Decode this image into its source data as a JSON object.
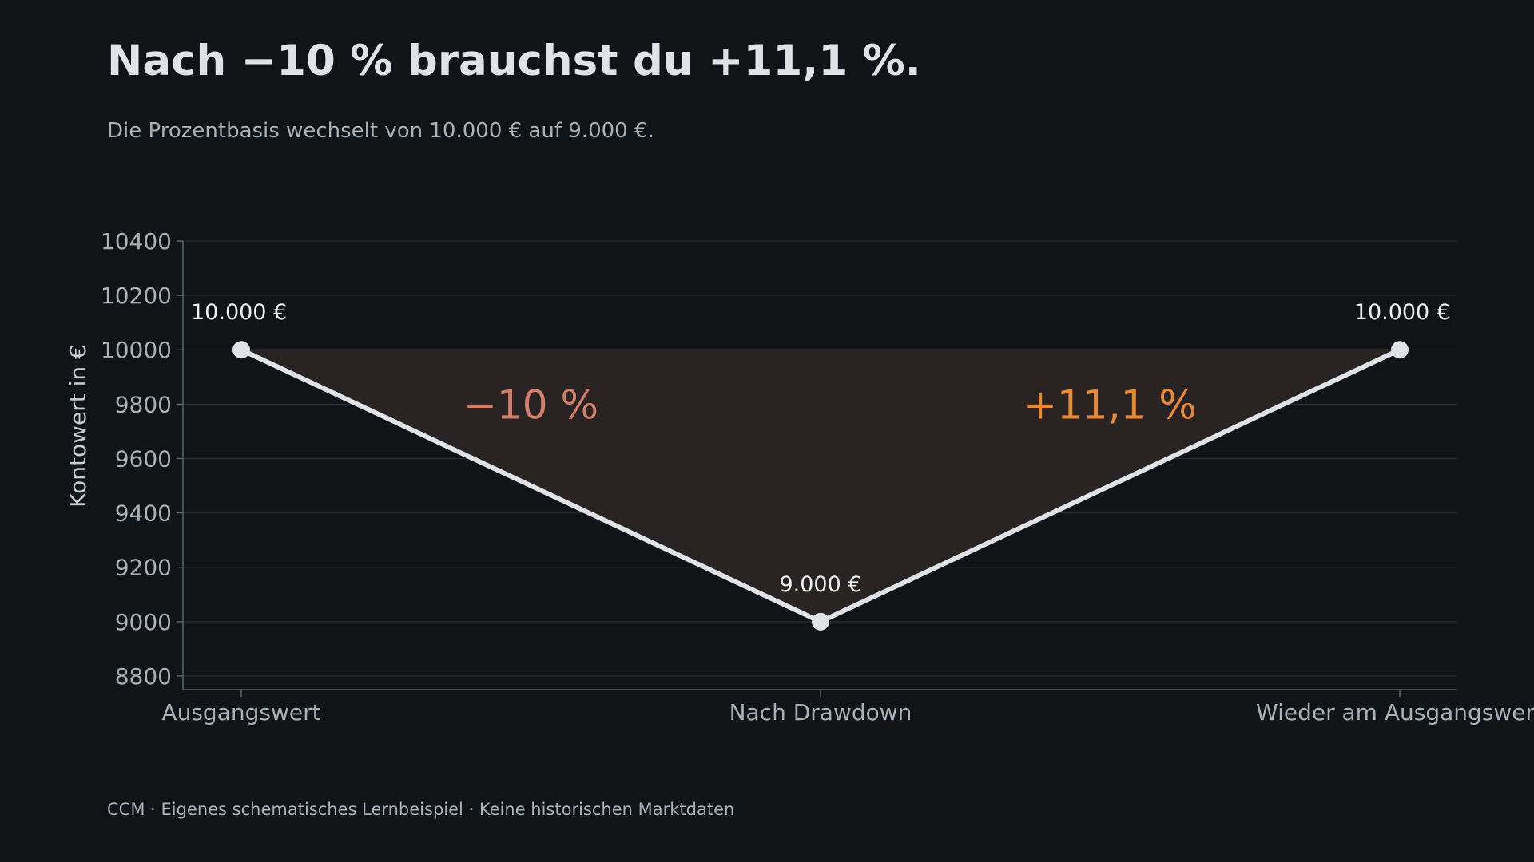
{
  "title": "Nach −10 % brauchst du +11,1 %.",
  "subtitle": "Die Prozentbasis wechselt von 10.000 € auf 9.000 €.",
  "footer": "CCM · Eigenes schematisches Lernbeispiel · Keine historischen Marktdaten",
  "colors": {
    "background": "#111417",
    "line": "#dfe3e7",
    "fill": "#2a2324",
    "loss": "#cf7f6a",
    "gain": "#e88a33",
    "grid": "#262a2e",
    "axis": "#5d646b",
    "tick_text": "#a8b0b8"
  },
  "chart_data": {
    "type": "line",
    "categories": [
      "Ausgangswert",
      "Nach Drawdown",
      "Wieder am Ausgangswert"
    ],
    "values": [
      10000,
      9000,
      10000
    ],
    "data_labels": [
      "10.000 €",
      "9.000 €",
      "10.000 €"
    ],
    "xlabel": "",
    "ylabel": "Kontowert in €",
    "ylim": [
      8750,
      10400
    ],
    "yticks": [
      8800,
      9000,
      9200,
      9400,
      9600,
      9800,
      10000,
      10200,
      10400
    ],
    "grid": true,
    "fill_to": 10000,
    "annotations": [
      {
        "text": "−10 %",
        "x": 0.5,
        "y": 9800,
        "color": "#cf7f6a"
      },
      {
        "text": "+11,1 %",
        "x": 1.5,
        "y": 9800,
        "color": "#e88a33"
      }
    ]
  }
}
